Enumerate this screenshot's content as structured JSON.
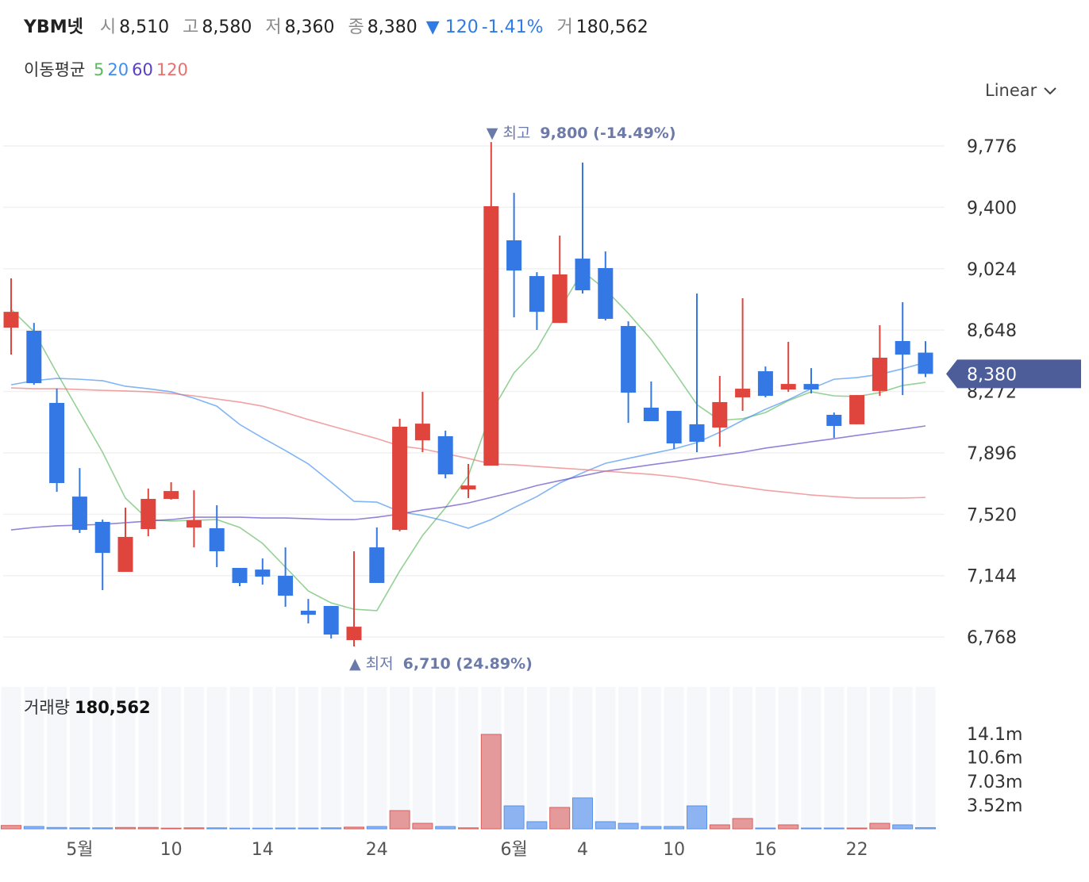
{
  "header": {
    "name": "YBM넷",
    "open_label": "시",
    "open": "8,510",
    "high_label": "고",
    "high": "8,580",
    "low_label": "저",
    "low": "8,360",
    "close_label": "종",
    "close": "8,380",
    "change": "▼ 120",
    "change_pct": "-1.41%",
    "volume_label": "거",
    "volume": "180,562"
  },
  "scale_menu": "Linear",
  "chart_data": {
    "type": "candlestick",
    "ma_label": "이동평균",
    "categories": [
      null,
      null,
      null,
      "5월",
      null,
      null,
      null,
      "10",
      null,
      null,
      null,
      "14",
      null,
      null,
      null,
      null,
      "24",
      null,
      null,
      null,
      null,
      null,
      "6월",
      null,
      null,
      "4",
      null,
      null,
      null,
      "10",
      null,
      null,
      null,
      "16",
      null,
      null,
      null,
      "22",
      null,
      null,
      null
    ],
    "open": [
      8663,
      8644,
      8202,
      7628,
      7473,
      7167,
      7429,
      7614,
      7439,
      7434,
      7191,
      7181,
      7143,
      6929,
      6958,
      6749,
      7317,
      7424,
      7973,
      7998,
      7672,
      7818,
      9198,
      8979,
      8692,
      9086,
      9028,
      8673,
      8173,
      8153,
      8071,
      8051,
      8236,
      8396,
      8284,
      8318,
      8129,
      8071,
      8275,
      8581,
      8510
    ],
    "high": [
      8965,
      8692,
      8289,
      7803,
      7487,
      7560,
      7677,
      7716,
      7667,
      7575,
      7191,
      7249,
      7317,
      7001,
      6958,
      7293,
      7439,
      8105,
      8270,
      8032,
      7828,
      9800,
      9489,
      9003,
      9227,
      9674,
      9130,
      8702,
      8333,
      8153,
      8872,
      8367,
      8843,
      8425,
      8576,
      8415,
      8143,
      8250,
      8678,
      8819,
      8580
    ],
    "low": [
      8498,
      8313,
      7657,
      7405,
      7055,
      7167,
      7385,
      7609,
      7317,
      7196,
      7079,
      7089,
      6953,
      6851,
      6759,
      6710,
      7099,
      7415,
      7900,
      7740,
      7619,
      7818,
      8726,
      8649,
      8692,
      8872,
      8707,
      8080,
      8090,
      7920,
      7900,
      7934,
      8153,
      8236,
      8270,
      8260,
      7988,
      8071,
      8245,
      8250,
      8360
    ],
    "close": [
      8760,
      8323,
      7711,
      7424,
      7283,
      7381,
      7614,
      7662,
      7483,
      7293,
      7099,
      7138,
      7021,
      6904,
      6783,
      6831,
      7099,
      8056,
      8075,
      7764,
      7696,
      9407,
      9013,
      8760,
      8989,
      8892,
      8717,
      8265,
      8090,
      7954,
      7964,
      8207,
      8289,
      8245,
      8318,
      8284,
      8061,
      8250,
      8479,
      8498,
      8380
    ],
    "up_color": "#e0453d",
    "down_color": "#3478e5",
    "series": [
      {
        "name": "5",
        "color": "#5cb85c",
        "values": [
          8775,
          8639,
          8386,
          8143,
          7900,
          7619,
          7487,
          7478,
          7483,
          7487,
          7439,
          7341,
          7196,
          7050,
          6977,
          6938,
          6929,
          7172,
          7390,
          7560,
          7755,
          8143,
          8386,
          8532,
          8775,
          9008,
          8897,
          8751,
          8590,
          8396,
          8192,
          8095,
          8105,
          8143,
          8216,
          8270,
          8245,
          8241,
          8265,
          8309,
          8328
        ]
      },
      {
        "name": "20",
        "color": "#3d8ef0",
        "values": [
          8313,
          8338,
          8352,
          8347,
          8338,
          8304,
          8289,
          8270,
          8231,
          8182,
          8070,
          7988,
          7910,
          7828,
          7716,
          7599,
          7594,
          7536,
          7512,
          7478,
          7434,
          7487,
          7560,
          7628,
          7711,
          7774,
          7832,
          7862,
          7891,
          7920,
          7959,
          8022,
          8095,
          8163,
          8221,
          8289,
          8347,
          8357,
          8377,
          8411,
          8450
        ]
      },
      {
        "name": "60",
        "color": "#5b3fc4",
        "values": [
          7424,
          7439,
          7449,
          7453,
          7458,
          7468,
          7478,
          7487,
          7502,
          7502,
          7502,
          7497,
          7497,
          7492,
          7487,
          7487,
          7502,
          7521,
          7546,
          7565,
          7589,
          7623,
          7657,
          7696,
          7726,
          7755,
          7784,
          7803,
          7823,
          7842,
          7862,
          7881,
          7900,
          7925,
          7944,
          7964,
          7983,
          8003,
          8022,
          8041,
          8061
        ]
      },
      {
        "name": "120",
        "color": "#e97070",
        "values": [
          8294,
          8289,
          8289,
          8284,
          8279,
          8275,
          8270,
          8260,
          8245,
          8226,
          8207,
          8182,
          8143,
          8100,
          8061,
          8022,
          7983,
          7939,
          7920,
          7891,
          7862,
          7828,
          7823,
          7813,
          7803,
          7794,
          7784,
          7774,
          7764,
          7750,
          7730,
          7706,
          7687,
          7667,
          7653,
          7638,
          7628,
          7619,
          7619,
          7619,
          7623
        ]
      }
    ],
    "ylim": [
      6540,
      9990
    ],
    "yticks": [
      {
        "value": 9776,
        "label": "9,776"
      },
      {
        "value": 9400,
        "label": "9,400"
      },
      {
        "value": 9024,
        "label": "9,024"
      },
      {
        "value": 8648,
        "label": "8,648"
      },
      {
        "value": 8272,
        "label": "8,272"
      },
      {
        "value": 7896,
        "label": "7,896"
      },
      {
        "value": 7520,
        "label": "7,520"
      },
      {
        "value": 7144,
        "label": "7,144"
      },
      {
        "value": 6768,
        "label": "6,768"
      }
    ],
    "grid": true,
    "max_annotation": {
      "label": "▼ 최고",
      "value": "9,800 (-14.49%)"
    },
    "min_annotation": {
      "label": "▲ 최저",
      "value": "6,710 (24.89%)"
    },
    "volume_title": "거래량",
    "volume": [
      500000,
      350000,
      200000,
      150000,
      150000,
      200000,
      200000,
      100000,
      150000,
      150000,
      100000,
      100000,
      120000,
      120000,
      150000,
      250000,
      350000,
      2700000,
      820000,
      350000,
      150000,
      13970000,
      3400000,
      1060000,
      3170000,
      4580000,
      1060000,
      820000,
      350000,
      350000,
      3400000,
      590000,
      1530000,
      120000,
      590000,
      120000,
      120000,
      120000,
      820000,
      590000,
      180562
    ],
    "volume_up_color": "#e49a9b",
    "volume_down_color": "#8db4f0",
    "volume_ylim": [
      0,
      21000000
    ],
    "volume_yticks": [
      {
        "value": 14100000,
        "label": "14.1m"
      },
      {
        "value": 10600000,
        "label": "10.6m"
      },
      {
        "value": 7030000,
        "label": "7.03m"
      },
      {
        "value": 3520000,
        "label": "3.52m"
      }
    ]
  }
}
